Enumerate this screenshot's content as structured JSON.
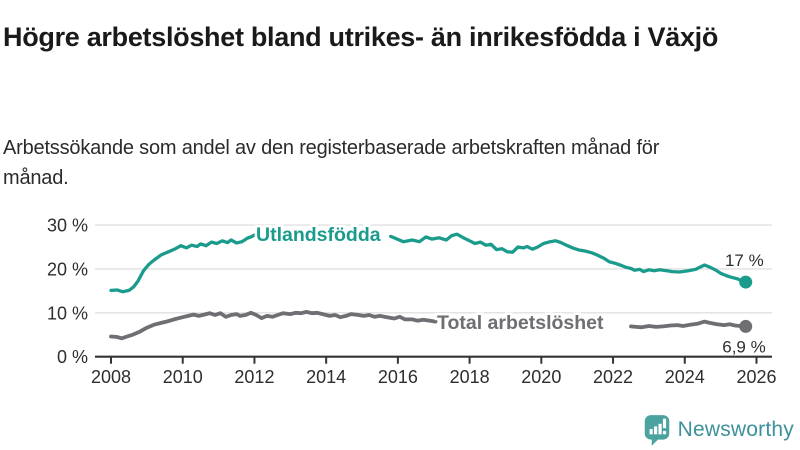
{
  "header": {
    "title": "Högre arbetslöshet bland utrikes- än inrikesfödda i Växjö",
    "subtitle": "Arbetssökande som andel av den registerbaserade arbetskraften månad för månad."
  },
  "footer": {
    "brand": "Newsworthy",
    "logo_icon": "bar-chart-speech-bubble-icon"
  },
  "colors": {
    "accent_teal": "#1a9b8c",
    "series_gray": "#6e6e73",
    "text_dark": "#1a1a1a",
    "text_medium": "#2e2e2e",
    "gridline": "#e1e1e1",
    "axis": "#333333",
    "brand_icon_teal": "#4ba3a0",
    "brand_text_teal": "#3c919b",
    "background": "#ffffff"
  },
  "chart_data": {
    "type": "line",
    "title": "Högre arbetslöshet bland utrikes- än inrikesfödda i Växjö",
    "subtitle": "Arbetssökande som andel av den registerbaserade arbetskraften månad för månad.",
    "xlabel": "",
    "ylabel": "",
    "x_unit": "year (monthly data)",
    "y_unit": "percent of labour force",
    "xlim": [
      2007.9,
      2026.4
    ],
    "ylim": [
      0,
      33
    ],
    "grid": "horizontal",
    "legend_position": "inline-labels-on-lines",
    "x_ticks": [
      {
        "v": 2008,
        "label": "2008"
      },
      {
        "v": 2010,
        "label": "2010"
      },
      {
        "v": 2012,
        "label": "2012"
      },
      {
        "v": 2014,
        "label": "2014"
      },
      {
        "v": 2016,
        "label": "2016"
      },
      {
        "v": 2018,
        "label": "2018"
      },
      {
        "v": 2020,
        "label": "2020"
      },
      {
        "v": 2022,
        "label": "2022"
      },
      {
        "v": 2024,
        "label": "2024"
      },
      {
        "v": 2026,
        "label": "2026"
      }
    ],
    "y_ticks": [
      {
        "v": 0,
        "label": "0 %"
      },
      {
        "v": 10,
        "label": "10 %"
      },
      {
        "v": 20,
        "label": "20 %"
      },
      {
        "v": 30,
        "label": "30 %"
      }
    ],
    "series": [
      {
        "name": "Utlandsfödda",
        "color_key": "accent_teal",
        "end_label": "17 %",
        "end_value": 17.0,
        "label_gap_years": [
          2012.02,
          2015.78
        ],
        "points": [
          [
            2008.0,
            15.1
          ],
          [
            2008.17,
            15.2
          ],
          [
            2008.33,
            14.8
          ],
          [
            2008.5,
            15.1
          ],
          [
            2008.63,
            15.9
          ],
          [
            2008.75,
            17.2
          ],
          [
            2008.9,
            19.5
          ],
          [
            2009.05,
            21.0
          ],
          [
            2009.2,
            22.0
          ],
          [
            2009.4,
            23.2
          ],
          [
            2009.6,
            23.9
          ],
          [
            2009.8,
            24.6
          ],
          [
            2009.95,
            25.3
          ],
          [
            2010.1,
            24.8
          ],
          [
            2010.25,
            25.4
          ],
          [
            2010.4,
            25.1
          ],
          [
            2010.5,
            25.7
          ],
          [
            2010.65,
            25.3
          ],
          [
            2010.8,
            26.1
          ],
          [
            2010.95,
            25.8
          ],
          [
            2011.1,
            26.4
          ],
          [
            2011.25,
            26.0
          ],
          [
            2011.35,
            26.6
          ],
          [
            2011.5,
            25.9
          ],
          [
            2011.65,
            26.2
          ],
          [
            2011.8,
            27.0
          ],
          [
            2011.9,
            27.3
          ],
          [
            2012.0,
            27.7
          ],
          [
            2015.8,
            27.4
          ],
          [
            2015.95,
            26.9
          ],
          [
            2016.15,
            26.2
          ],
          [
            2016.4,
            26.6
          ],
          [
            2016.6,
            26.2
          ],
          [
            2016.78,
            27.3
          ],
          [
            2016.95,
            26.8
          ],
          [
            2017.15,
            27.1
          ],
          [
            2017.35,
            26.6
          ],
          [
            2017.5,
            27.6
          ],
          [
            2017.65,
            27.9
          ],
          [
            2017.85,
            27.0
          ],
          [
            2018.0,
            26.4
          ],
          [
            2018.15,
            25.8
          ],
          [
            2018.3,
            26.1
          ],
          [
            2018.45,
            25.4
          ],
          [
            2018.6,
            25.6
          ],
          [
            2018.75,
            24.4
          ],
          [
            2018.9,
            24.6
          ],
          [
            2019.05,
            23.9
          ],
          [
            2019.2,
            23.8
          ],
          [
            2019.35,
            25.0
          ],
          [
            2019.5,
            24.8
          ],
          [
            2019.6,
            25.1
          ],
          [
            2019.75,
            24.5
          ],
          [
            2019.9,
            25.0
          ],
          [
            2020.06,
            25.8
          ],
          [
            2020.25,
            26.2
          ],
          [
            2020.4,
            26.4
          ],
          [
            2020.55,
            26.0
          ],
          [
            2020.7,
            25.4
          ],
          [
            2020.9,
            24.7
          ],
          [
            2021.05,
            24.3
          ],
          [
            2021.2,
            24.1
          ],
          [
            2021.4,
            23.7
          ],
          [
            2021.55,
            23.2
          ],
          [
            2021.75,
            22.4
          ],
          [
            2021.9,
            21.6
          ],
          [
            2022.05,
            21.3
          ],
          [
            2022.2,
            20.9
          ],
          [
            2022.35,
            20.4
          ],
          [
            2022.5,
            20.1
          ],
          [
            2022.6,
            19.7
          ],
          [
            2022.75,
            19.9
          ],
          [
            2022.85,
            19.4
          ],
          [
            2023.0,
            19.8
          ],
          [
            2023.15,
            19.6
          ],
          [
            2023.3,
            19.8
          ],
          [
            2023.5,
            19.6
          ],
          [
            2023.65,
            19.4
          ],
          [
            2023.85,
            19.3
          ],
          [
            2024.1,
            19.6
          ],
          [
            2024.3,
            19.9
          ],
          [
            2024.55,
            20.9
          ],
          [
            2024.7,
            20.4
          ],
          [
            2024.85,
            19.8
          ],
          [
            2025.0,
            19.0
          ],
          [
            2025.15,
            18.5
          ],
          [
            2025.3,
            18.1
          ],
          [
            2025.45,
            17.8
          ],
          [
            2025.6,
            17.3
          ],
          [
            2025.7,
            17.0
          ]
        ]
      },
      {
        "name": "Total arbetslöshet",
        "color_key": "series_gray",
        "end_label": "6,9 %",
        "end_value": 6.9,
        "label_gap_years": [
          2017.09,
          2022.47
        ],
        "points": [
          [
            2008.0,
            4.6
          ],
          [
            2008.15,
            4.5
          ],
          [
            2008.3,
            4.2
          ],
          [
            2008.45,
            4.6
          ],
          [
            2008.6,
            5.0
          ],
          [
            2008.8,
            5.7
          ],
          [
            2009.0,
            6.6
          ],
          [
            2009.2,
            7.3
          ],
          [
            2009.4,
            7.7
          ],
          [
            2009.6,
            8.1
          ],
          [
            2009.8,
            8.6
          ],
          [
            2010.0,
            9.0
          ],
          [
            2010.15,
            9.3
          ],
          [
            2010.3,
            9.6
          ],
          [
            2010.45,
            9.3
          ],
          [
            2010.6,
            9.6
          ],
          [
            2010.75,
            9.9
          ],
          [
            2010.9,
            9.5
          ],
          [
            2011.05,
            9.9
          ],
          [
            2011.2,
            9.1
          ],
          [
            2011.35,
            9.5
          ],
          [
            2011.5,
            9.7
          ],
          [
            2011.6,
            9.3
          ],
          [
            2011.75,
            9.5
          ],
          [
            2011.9,
            10.0
          ],
          [
            2012.05,
            9.5
          ],
          [
            2012.2,
            8.8
          ],
          [
            2012.35,
            9.3
          ],
          [
            2012.5,
            9.1
          ],
          [
            2012.65,
            9.5
          ],
          [
            2012.8,
            9.9
          ],
          [
            2013.0,
            9.7
          ],
          [
            2013.15,
            10.0
          ],
          [
            2013.3,
            9.9
          ],
          [
            2013.45,
            10.2
          ],
          [
            2013.6,
            9.9
          ],
          [
            2013.75,
            10.0
          ],
          [
            2013.9,
            9.7
          ],
          [
            2014.1,
            9.3
          ],
          [
            2014.25,
            9.5
          ],
          [
            2014.4,
            9.0
          ],
          [
            2014.55,
            9.3
          ],
          [
            2014.7,
            9.7
          ],
          [
            2014.9,
            9.5
          ],
          [
            2015.05,
            9.3
          ],
          [
            2015.2,
            9.5
          ],
          [
            2015.35,
            9.1
          ],
          [
            2015.5,
            9.3
          ],
          [
            2015.7,
            9.0
          ],
          [
            2015.9,
            8.7
          ],
          [
            2016.05,
            9.1
          ],
          [
            2016.2,
            8.5
          ],
          [
            2016.4,
            8.5
          ],
          [
            2016.55,
            8.2
          ],
          [
            2016.7,
            8.4
          ],
          [
            2016.9,
            8.2
          ],
          [
            2017.05,
            8.0
          ],
          [
            2022.5,
            6.9
          ],
          [
            2022.65,
            6.8
          ],
          [
            2022.8,
            6.7
          ],
          [
            2023.0,
            7.0
          ],
          [
            2023.2,
            6.8
          ],
          [
            2023.4,
            6.9
          ],
          [
            2023.6,
            7.1
          ],
          [
            2023.8,
            7.2
          ],
          [
            2023.95,
            7.0
          ],
          [
            2024.15,
            7.3
          ],
          [
            2024.35,
            7.5
          ],
          [
            2024.55,
            8.0
          ],
          [
            2024.7,
            7.7
          ],
          [
            2024.9,
            7.4
          ],
          [
            2025.1,
            7.2
          ],
          [
            2025.25,
            7.4
          ],
          [
            2025.4,
            7.1
          ],
          [
            2025.55,
            7.0
          ],
          [
            2025.7,
            6.9
          ]
        ]
      }
    ]
  }
}
